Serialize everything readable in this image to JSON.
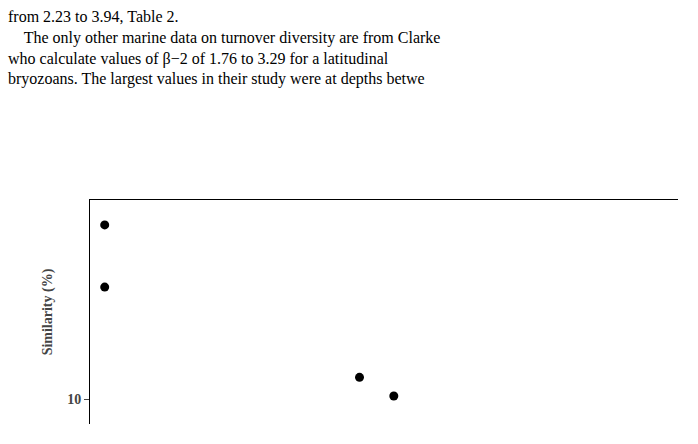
{
  "chart_data": {
    "type": "scatter",
    "ylabel": "Similarity (%)",
    "annotations": [
      "from 2.23 to 3.94, Table 2.",
      "    The only other marine data on turnover diversity are from Clarke",
      "who calculate values of β−2 of 1.76 to 3.29 for a latitudinal",
      "bryozoans. The largest values in their study were at depths betwe"
    ],
    "x": [
      0.3,
      0.3,
      5.5,
      6.2
    ],
    "values": [
      38,
      28,
      13.5,
      10.5
    ],
    "color": "#000000",
    "xlim": [
      0,
      12
    ],
    "ylim": [
      6,
      42
    ],
    "yticks": [
      10
    ],
    "tick_labels": "y",
    "grid": false
  }
}
